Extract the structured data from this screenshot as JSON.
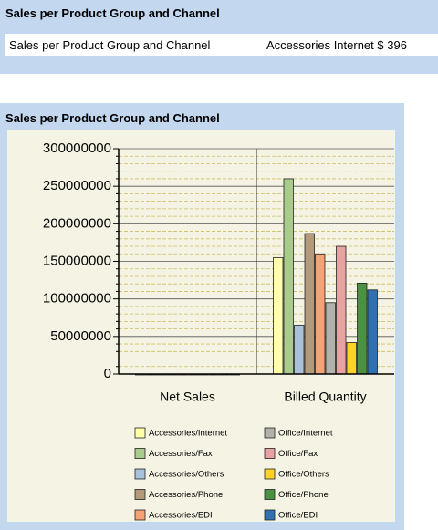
{
  "top_panel": {
    "title": "Sales per Product Group and Channel",
    "row": [
      "Sales per Product Group and Channel",
      "Accessories Internet $ 396"
    ]
  },
  "chart_panel": {
    "title": "Sales per Product Group and Channel"
  },
  "chart_data": {
    "type": "bar",
    "categories": [
      "Net Sales",
      "Billed Quantity"
    ],
    "series": [
      {
        "name": "Accessories/Internet",
        "color": "#ffffa8",
        "values": [
          0,
          155000000
        ]
      },
      {
        "name": "Accessories/Fax",
        "color": "#a9cc8c",
        "values": [
          0,
          260000000
        ]
      },
      {
        "name": "Accessories/Others",
        "color": "#a9c1d9",
        "values": [
          0,
          65000000
        ]
      },
      {
        "name": "Accessories/Phone",
        "color": "#b39a7a",
        "values": [
          0,
          187000000
        ]
      },
      {
        "name": "Accessories/EDI",
        "color": "#f5a274",
        "values": [
          0,
          160000000
        ]
      },
      {
        "name": "Office/Internet",
        "color": "#b2b1aa",
        "values": [
          0,
          95000000
        ]
      },
      {
        "name": "Office/Fax",
        "color": "#e9a2a2",
        "values": [
          0,
          170000000
        ]
      },
      {
        "name": "Office/Others",
        "color": "#ffd22a",
        "values": [
          0,
          42000000
        ]
      },
      {
        "name": "Office/Phone",
        "color": "#4a9242",
        "values": [
          0,
          121000000
        ]
      },
      {
        "name": "Office/EDI",
        "color": "#3171b2",
        "values": [
          0,
          112000000
        ]
      }
    ],
    "ylim": [
      0,
      300000000
    ],
    "yticks": [
      0,
      50000000,
      100000000,
      150000000,
      200000000,
      250000000,
      300000000
    ],
    "grid": true
  }
}
